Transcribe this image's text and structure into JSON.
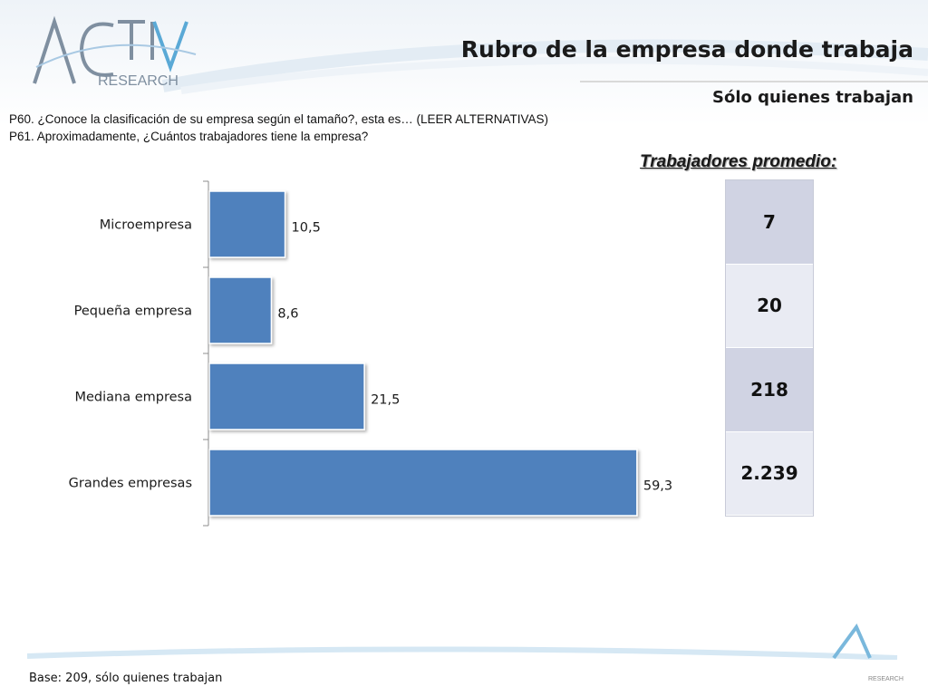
{
  "header": {
    "logo_text_main": "ACTIVA",
    "logo_text_sub": "RESEARCH",
    "title": "Rubro de la empresa donde trabaja",
    "subtitle": "Sólo quienes trabajan"
  },
  "questions": {
    "q1": "P60. ¿Conoce la clasificación de su empresa según el tamaño?, esta es… (LEER ALTERNATIVAS)",
    "q2": "P61. Aproximadamente, ¿Cuántos trabajadores tiene la empresa?"
  },
  "avg_workers": {
    "heading": "Trabajadores promedio:",
    "values": [
      "7",
      "20",
      "218",
      "2.239"
    ]
  },
  "chart_data": {
    "type": "bar",
    "orientation": "horizontal",
    "categories": [
      "Microempresa",
      "Pequeña empresa",
      "Mediana empresa",
      "Grandes empresas"
    ],
    "values": [
      10.5,
      8.6,
      21.5,
      59.3
    ],
    "value_labels": [
      "10,5",
      "8,6",
      "21,5",
      "59,3"
    ],
    "xlim": [
      0,
      70
    ],
    "bar_color": "#4f81bd",
    "title": "",
    "xlabel": "",
    "ylabel": ""
  },
  "footer": {
    "base": "Base: 209, sólo quienes trabajan",
    "brand_small": "RESEARCH"
  }
}
